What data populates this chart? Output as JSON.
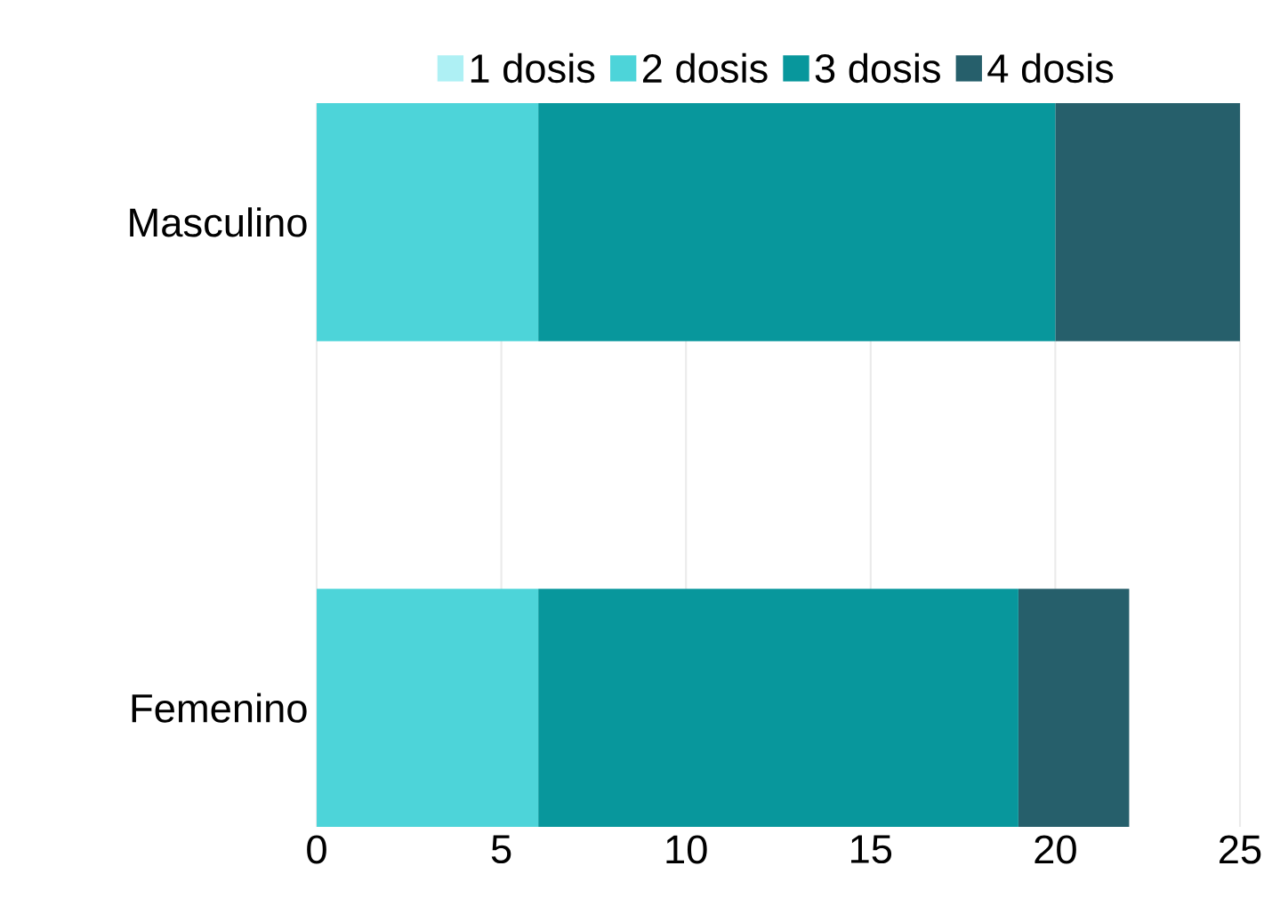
{
  "chart_data": {
    "type": "bar",
    "orientation": "horizontal",
    "stacked": true,
    "categories": [
      "Masculino",
      "Femenino"
    ],
    "series": [
      {
        "name": "1 dosis",
        "color": "#aef0f4",
        "values": [
          0,
          0
        ]
      },
      {
        "name": "2 dosis",
        "color": "#4dd4d9",
        "values": [
          6,
          6
        ]
      },
      {
        "name": "3 dosis",
        "color": "#08979c",
        "values": [
          14,
          13
        ]
      },
      {
        "name": "4 dosis",
        "color": "#265f6b",
        "values": [
          5,
          3
        ]
      }
    ],
    "xlim": [
      0,
      25
    ],
    "xticks": [
      0,
      5,
      10,
      15,
      20,
      25
    ],
    "grid": "x",
    "legend": "top"
  }
}
